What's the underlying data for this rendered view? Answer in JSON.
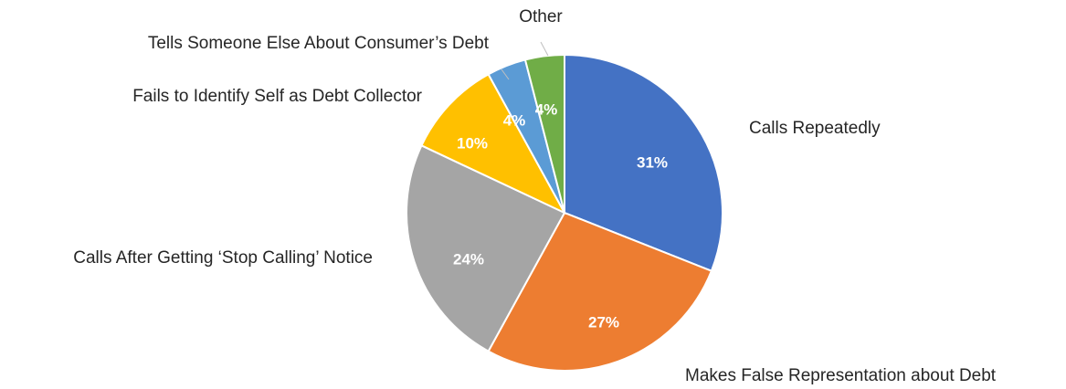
{
  "chart_data": {
    "type": "pie",
    "title": "",
    "start_angle_deg": 0,
    "direction": "clockwise",
    "slices": [
      {
        "label": "Calls Repeatedly",
        "value": 31,
        "value_label": "31%",
        "color": "#4472C4"
      },
      {
        "label": "Makes False Representation about Debt",
        "value": 27,
        "value_label": "27%",
        "color": "#ED7D31"
      },
      {
        "label": "Calls After Getting ‘Stop Calling’ Notice",
        "value": 24,
        "value_label": "24%",
        "color": "#A5A5A5"
      },
      {
        "label": "Fails to Identify Self as Debt Collector",
        "value": 10,
        "value_label": "10%",
        "color": "#FFC000"
      },
      {
        "label": "Tells Someone Else About Consumer’s Debt",
        "value": 4,
        "value_label": "4%",
        "color": "#5B9BD5"
      },
      {
        "label": "Other",
        "value": 4,
        "value_label": "4%",
        "color": "#70AD47"
      }
    ],
    "legend": "none",
    "label_style": "category names outside with leader lines, percentages inside slices"
  }
}
